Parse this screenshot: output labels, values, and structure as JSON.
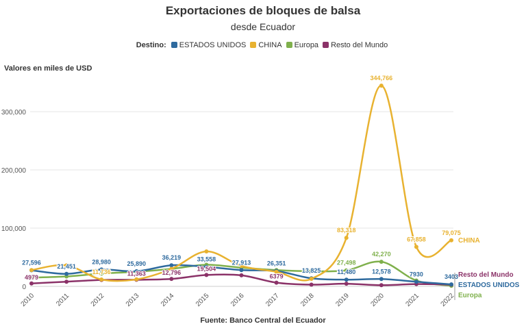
{
  "title": "Exportaciones de bloques de balsa",
  "subtitle": "desde Ecuador",
  "legend_title": "Destino:",
  "source": "Fuente: Banco Central del Ecuador",
  "chart_data": {
    "type": "line",
    "ylabel": "Valores en miles de USD",
    "ylim": [
      0,
      350000
    ],
    "yticks": [
      0,
      100000,
      200000,
      300000
    ],
    "ytick_labels": [
      "0",
      "100,000",
      "200,000",
      "300,000"
    ],
    "grid": true,
    "legend": "top",
    "x": [
      "2010",
      "2011",
      "2012",
      "2013",
      "2014",
      "2015",
      "2016",
      "2017",
      "2018",
      "2019",
      "2020",
      "2021",
      "2022"
    ],
    "series": [
      {
        "name": "ESTADOS UNIDOS",
        "color": "#2e6a9e",
        "values": [
          27596,
          21451,
          28980,
          25890,
          36219,
          33558,
          27913,
          26351,
          13825,
          11480,
          12578,
          7930,
          3403
        ],
        "labels": [
          "27,596",
          "21,451",
          "28,980",
          "25,890",
          "36,219",
          "33,558",
          "27,913",
          "26,351",
          "13,825",
          "11,480",
          "12,578",
          "7930",
          "3403"
        ]
      },
      {
        "name": "CHINA",
        "color": "#e8b230",
        "values": [
          28000,
          36000,
          11736,
          12000,
          30000,
          60000,
          35000,
          25000,
          13000,
          83318,
          344766,
          67858,
          79075
        ],
        "labels": [
          "",
          "",
          "11,736",
          "",
          "",
          "",
          "",
          "",
          "",
          "83,318",
          "344,766",
          "67,858",
          "79,075"
        ]
      },
      {
        "name": "Europa",
        "color": "#7fb04c",
        "values": [
          15000,
          17000,
          22000,
          25000,
          30000,
          37000,
          32000,
          28000,
          26000,
          27498,
          42270,
          10000,
          1000
        ],
        "labels": [
          "",
          "",
          "",
          "",
          "",
          "",
          "",
          "",
          "",
          "27,498",
          "42,270",
          "",
          ""
        ]
      },
      {
        "name": "Resto del Mundo",
        "color": "#8b3268",
        "values": [
          4979,
          8000,
          11000,
          11363,
          12796,
          19504,
          19000,
          6379,
          3000,
          4500,
          2000,
          4000,
          3000
        ],
        "labels": [
          "4979",
          "",
          "",
          "11,363",
          "12,796",
          "19,504",
          "",
          "6379",
          "",
          "",
          "",
          "",
          ""
        ]
      }
    ]
  }
}
